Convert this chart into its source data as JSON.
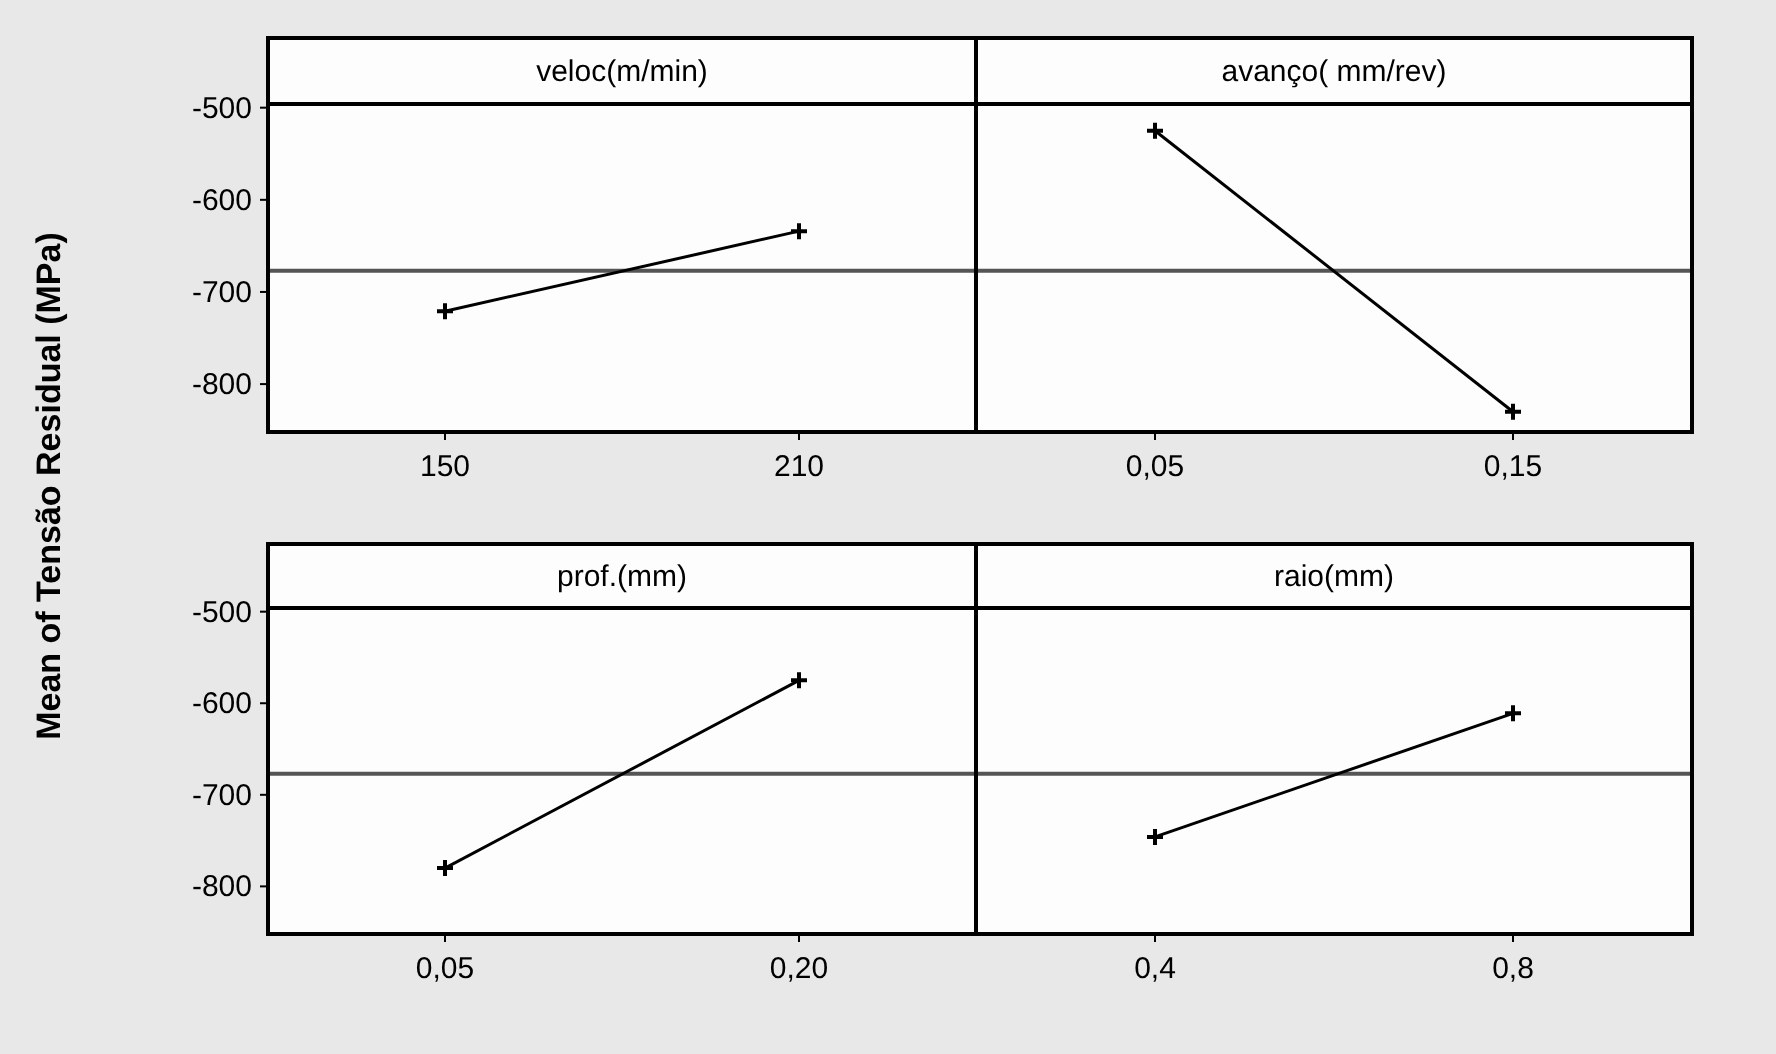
{
  "chart_data": [
    {
      "type": "line",
      "title": "veloc(m/min)",
      "ylabel": "Mean of Tensão Residual (MPa)",
      "x": [
        150,
        210
      ],
      "xlim": [
        120,
        240
      ],
      "xticks": [
        150,
        210
      ],
      "ylim": [
        -852,
        -496
      ],
      "yticks": [
        -500,
        -600,
        -700,
        -800
      ],
      "marker": "cross",
      "grid": false,
      "series": [
        {
          "color": "#000000",
          "values": [
            -721,
            -634
          ]
        }
      ],
      "ref_lines": [
        {
          "axis": "y",
          "value": -677,
          "color": "#555555"
        }
      ]
    },
    {
      "type": "line",
      "title": "avanço( mm/rev)",
      "x": [
        0.05,
        0.15
      ],
      "xlim": [
        0,
        0.2
      ],
      "xticks": [
        {
          "value": 0.05,
          "label": "0,05"
        },
        {
          "value": 0.15,
          "label": "0,15"
        }
      ],
      "ylim": [
        -852,
        -496
      ],
      "yticks": [
        -500,
        -600,
        -700,
        -800
      ],
      "tick_labels": "x",
      "marker": "cross",
      "grid": false,
      "series": [
        {
          "color": "#000000",
          "values": [
            -525,
            -830
          ]
        }
      ],
      "ref_lines": [
        {
          "axis": "y",
          "value": -677,
          "color": "#555555"
        }
      ]
    },
    {
      "type": "line",
      "title": "prof.(mm)",
      "x": [
        0.05,
        0.2
      ],
      "xlim": [
        -0.025,
        0.275
      ],
      "xticks": [
        {
          "value": 0.05,
          "label": "0,05"
        },
        {
          "value": 0.2,
          "label": "0,20"
        }
      ],
      "ylim": [
        -852,
        -496
      ],
      "yticks": [
        -500,
        -600,
        -700,
        -800
      ],
      "marker": "cross",
      "grid": false,
      "series": [
        {
          "color": "#000000",
          "values": [
            -780,
            -575
          ]
        }
      ],
      "ref_lines": [
        {
          "axis": "y",
          "value": -677,
          "color": "#555555"
        }
      ]
    },
    {
      "type": "line",
      "title": "raio(mm)",
      "x": [
        0.4,
        0.8
      ],
      "xlim": [
        0.2,
        1.0
      ],
      "xticks": [
        {
          "value": 0.4,
          "label": "0,4"
        },
        {
          "value": 0.8,
          "label": "0,8"
        }
      ],
      "ylim": [
        -852,
        -496
      ],
      "yticks": [
        -500,
        -600,
        -700,
        -800
      ],
      "tick_labels": "x",
      "marker": "cross",
      "grid": false,
      "series": [
        {
          "color": "#000000",
          "values": [
            -746,
            -611
          ]
        }
      ],
      "ref_lines": [
        {
          "axis": "y",
          "value": -677,
          "color": "#555555"
        }
      ]
    }
  ]
}
